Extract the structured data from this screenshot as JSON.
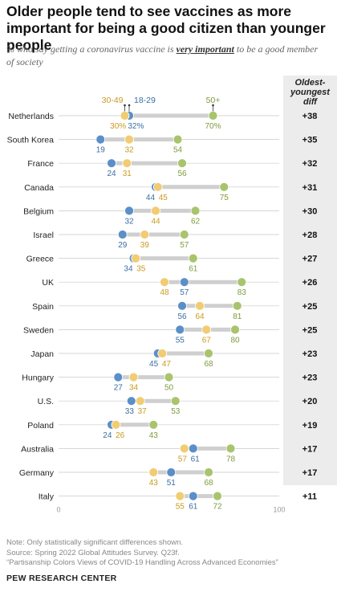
{
  "title": "Older people tend to see vaccines as more important for being a good citizen than younger people",
  "subtitle": {
    "prefix": "% who say getting a coronavirus vaccine is ",
    "emphasis": "very important",
    "suffix": " to be a good member of society"
  },
  "diff_header": "Oldest-youngest diff",
  "legend": {
    "young": "18-29",
    "mid": "30-49",
    "old": "50+"
  },
  "colors": {
    "young": "#5b8fc9",
    "mid": "#f1cc72",
    "old": "#a8c46d",
    "young_text": "#3a6ea5",
    "mid_text": "#c99a1e",
    "old_text": "#7f9b3e"
  },
  "notes": [
    "Note: Only statistically significant differences shown.",
    "Source: Spring 2022 Global Attitudes Survey. Q23f.",
    "“Partisanship Colors Views of COVID-19 Handling Across Advanced Economies”"
  ],
  "brand": "PEW RESEARCH CENTER",
  "chart_data": {
    "type": "dot",
    "xlim": [
      0,
      100
    ],
    "x_ticks": [
      "0",
      "100"
    ],
    "series_names": [
      "18-29",
      "30-49",
      "50+"
    ],
    "rows": [
      {
        "country": "Netherlands",
        "young": 32,
        "mid": 30,
        "old": 70,
        "diff": "+38",
        "young_label": "32%",
        "mid_label": "30%",
        "old_label": "70%"
      },
      {
        "country": "South Korea",
        "young": 19,
        "mid": 32,
        "old": 54,
        "diff": "+35"
      },
      {
        "country": "France",
        "young": 24,
        "mid": 31,
        "old": 56,
        "diff": "+32"
      },
      {
        "country": "Canada",
        "young": 44,
        "mid": 45,
        "old": 75,
        "diff": "+31"
      },
      {
        "country": "Belgium",
        "young": 32,
        "mid": 44,
        "old": 62,
        "diff": "+30"
      },
      {
        "country": "Israel",
        "young": 29,
        "mid": 39,
        "old": 57,
        "diff": "+28"
      },
      {
        "country": "Greece",
        "young": 34,
        "mid": 35,
        "old": 61,
        "diff": "+27"
      },
      {
        "country": "UK",
        "young": 57,
        "mid": 48,
        "old": 83,
        "diff": "+26"
      },
      {
        "country": "Spain",
        "young": 56,
        "mid": 64,
        "old": 81,
        "diff": "+25"
      },
      {
        "country": "Sweden",
        "young": 55,
        "mid": 67,
        "old": 80,
        "diff": "+25"
      },
      {
        "country": "Japan",
        "young": 45,
        "mid": 47,
        "old": 68,
        "diff": "+23"
      },
      {
        "country": "Hungary",
        "young": 27,
        "mid": 34,
        "old": 50,
        "diff": "+23"
      },
      {
        "country": "U.S.",
        "young": 33,
        "mid": 37,
        "old": 53,
        "diff": "+20"
      },
      {
        "country": "Poland",
        "young": 24,
        "mid": 26,
        "old": 43,
        "diff": "+19"
      },
      {
        "country": "Australia",
        "young": 61,
        "mid": 57,
        "old": 78,
        "diff": "+17"
      },
      {
        "country": "Germany",
        "young": 51,
        "mid": 43,
        "old": 68,
        "diff": "+17"
      },
      {
        "country": "Italy",
        "young": 61,
        "mid": 55,
        "old": 72,
        "diff": "+11"
      }
    ]
  }
}
